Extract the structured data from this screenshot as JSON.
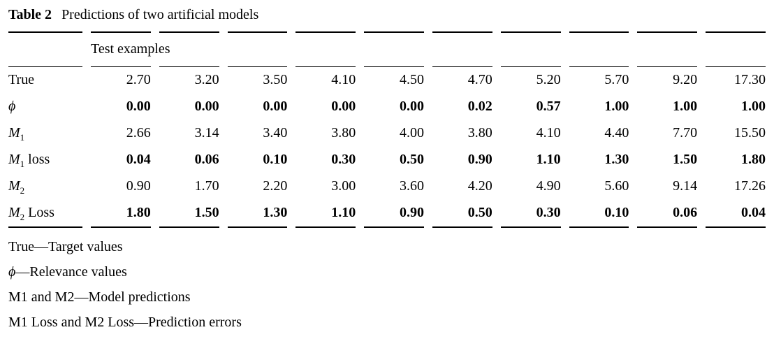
{
  "caption": {
    "label": "Table 2",
    "title": "Predictions of two artificial models"
  },
  "table": {
    "header": "Test examples",
    "rows": [
      {
        "label": {
          "base": "True",
          "sub": "",
          "suffix": ""
        },
        "values": [
          "2.70",
          "3.20",
          "3.50",
          "4.10",
          "4.50",
          "4.70",
          "5.20",
          "5.70",
          "9.20",
          "17.30"
        ]
      },
      {
        "label": {
          "base": "ϕ",
          "sub": "",
          "suffix": ""
        },
        "values": [
          "0.00",
          "0.00",
          "0.00",
          "0.00",
          "0.00",
          "0.02",
          "0.57",
          "1.00",
          "1.00",
          "1.00"
        ]
      },
      {
        "label": {
          "base": "M",
          "sub": "1",
          "suffix": ""
        },
        "values": [
          "2.66",
          "3.14",
          "3.40",
          "3.80",
          "4.00",
          "3.80",
          "4.10",
          "4.40",
          "7.70",
          "15.50"
        ]
      },
      {
        "label": {
          "base": "M",
          "sub": "1",
          "suffix": " loss"
        },
        "values": [
          "0.04",
          "0.06",
          "0.10",
          "0.30",
          "0.50",
          "0.90",
          "1.10",
          "1.30",
          "1.50",
          "1.80"
        ]
      },
      {
        "label": {
          "base": "M",
          "sub": "2",
          "suffix": ""
        },
        "values": [
          "0.90",
          "1.70",
          "2.20",
          "3.00",
          "3.60",
          "4.20",
          "4.90",
          "5.60",
          "9.14",
          "17.26"
        ]
      },
      {
        "label": {
          "base": "M",
          "sub": "2",
          "suffix": " Loss"
        },
        "values": [
          "1.80",
          "1.50",
          "1.30",
          "1.10",
          "0.90",
          "0.50",
          "0.30",
          "0.10",
          "0.06",
          "0.04"
        ]
      }
    ]
  },
  "footnotes": [
    {
      "symbol": "",
      "text": "True—Target values"
    },
    {
      "symbol": "ϕ",
      "text": "—Relevance values"
    },
    {
      "symbol": "",
      "text": "M1 and M2—Model predictions"
    },
    {
      "symbol": "",
      "text": "M1 Loss and M2 Loss—Prediction errors"
    }
  ]
}
